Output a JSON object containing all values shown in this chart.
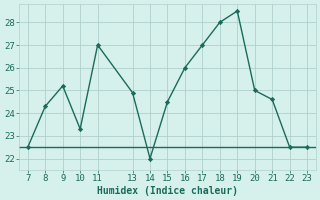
{
  "x": [
    7,
    8,
    9,
    10,
    11,
    13,
    14,
    15,
    16,
    17,
    18,
    19,
    20,
    21,
    22,
    23
  ],
  "y": [
    22.5,
    24.3,
    25.2,
    23.3,
    27.0,
    24.9,
    22.0,
    24.5,
    26.0,
    27.0,
    28.0,
    28.5,
    25.0,
    24.6,
    22.5,
    22.5
  ],
  "hline_y": 22.5,
  "xlim": [
    6.5,
    23.5
  ],
  "ylim": [
    21.5,
    28.8
  ],
  "xticks": [
    7,
    8,
    9,
    10,
    11,
    13,
    14,
    15,
    16,
    17,
    18,
    19,
    20,
    21,
    22,
    23
  ],
  "yticks": [
    22,
    23,
    24,
    25,
    26,
    27,
    28
  ],
  "xlabel": "Humidex (Indice chaleur)",
  "line_color": "#1a6b5a",
  "bg_color": "#d6f0ec",
  "grid_color": "#b0d0cc",
  "marker": "D",
  "marker_size": 2.2,
  "line_width": 1.0,
  "xlabel_fontsize": 7,
  "tick_fontsize": 6.5
}
